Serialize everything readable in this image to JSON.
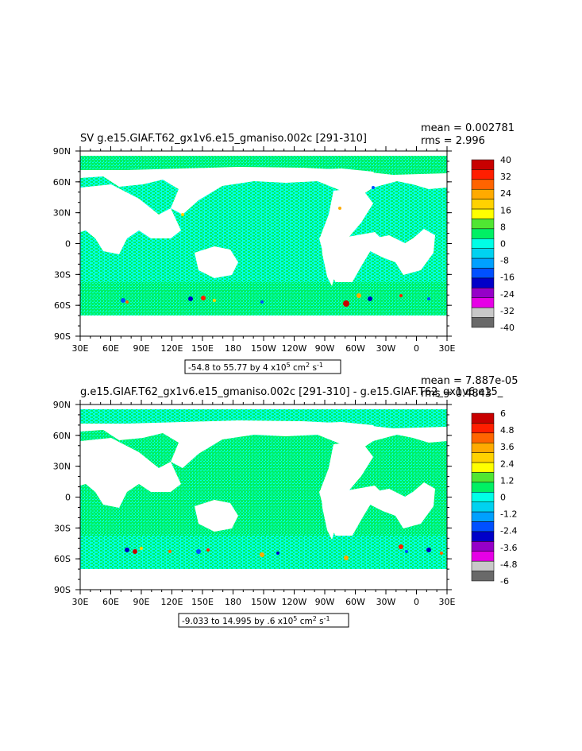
{
  "chart_data": [
    {
      "type": "heatmap",
      "title": "SV g.e15.GIAF.T62_gx1v6.e15_gmaniso.002c [291-310]",
      "stats": {
        "mean": "mean = 0.002781",
        "rms": "rms = 2.996"
      },
      "range_label": "-54.8 to 55.77 by 4 x10",
      "range_exp": "5",
      "range_units": " cm",
      "range_units_exp": "2",
      "range_units_tail": " s",
      "range_units_tail_exp": "-1",
      "xlabels": [
        "30E",
        "60E",
        "90E",
        "120E",
        "150E",
        "180",
        "150W",
        "120W",
        "90W",
        "60W",
        "30W",
        "0",
        "30E"
      ],
      "ylabels": [
        "90N",
        "60N",
        "30N",
        "0",
        "30S",
        "60S",
        "90S"
      ],
      "colorbar": {
        "labels": [
          "40",
          "32",
          "24",
          "16",
          "8",
          "0",
          "-8",
          "-16",
          "-24",
          "-32",
          "-40"
        ],
        "colors": [
          "#c80000",
          "#ff1e00",
          "#ff6400",
          "#ffaa00",
          "#ffd200",
          "#ffff00",
          "#50e632",
          "#00f064",
          "#00ffe6",
          "#00d2f0",
          "#00a0ff",
          "#0050ff",
          "#0000c8",
          "#9600c8",
          "#e600e6",
          "#c8c8c8",
          "#696969"
        ]
      }
    },
    {
      "type": "heatmap",
      "title": "g.e15.GIAF.T62_gx1v6.e15_gmaniso.002c [291-310] - g.e15.GIAF.T62_gx1v6.e15_",
      "stats": {
        "mean": "mean = 7.887e-05",
        "rms": "rms = 0.4843"
      },
      "range_label": "-9.033 to 14.995 by .6 x10",
      "range_exp": "5",
      "range_units": " cm",
      "range_units_exp": "2",
      "range_units_tail": " s",
      "range_units_tail_exp": "-1",
      "xlabels": [
        "30E",
        "60E",
        "90E",
        "120E",
        "150E",
        "180",
        "150W",
        "120W",
        "90W",
        "60W",
        "30W",
        "0",
        "30E"
      ],
      "ylabels": [
        "90N",
        "60N",
        "30N",
        "0",
        "30S",
        "60S",
        "90S"
      ],
      "colorbar": {
        "labels": [
          "6",
          "4.8",
          "3.6",
          "2.4",
          "1.2",
          "0",
          "-1.2",
          "-2.4",
          "-3.6",
          "-4.8",
          "-6"
        ],
        "colors": [
          "#c80000",
          "#ff1e00",
          "#ff6400",
          "#ffaa00",
          "#ffd200",
          "#ffff00",
          "#50e632",
          "#00f064",
          "#00ffe6",
          "#00d2f0",
          "#00a0ff",
          "#0050ff",
          "#0000c8",
          "#9600c8",
          "#e600e6",
          "#c8c8c8",
          "#696969"
        ]
      }
    }
  ],
  "colors": {
    "ocean_main": "#00f064",
    "ocean_alt": "#00ffe6",
    "land": "#ffffff",
    "frame": "#000000"
  }
}
